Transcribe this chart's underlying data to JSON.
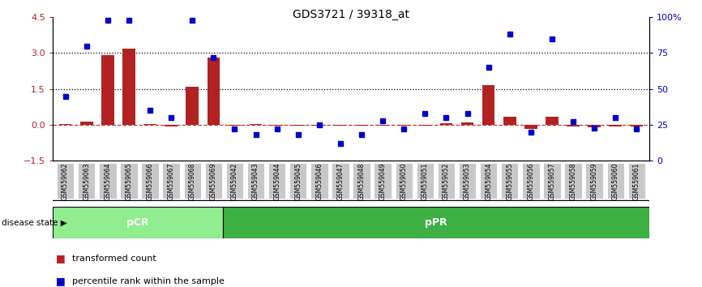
{
  "title": "GDS3721 / 39318_at",
  "samples": [
    "GSM559062",
    "GSM559063",
    "GSM559064",
    "GSM559065",
    "GSM559066",
    "GSM559067",
    "GSM559068",
    "GSM559069",
    "GSM559042",
    "GSM559043",
    "GSM559044",
    "GSM559045",
    "GSM559046",
    "GSM559047",
    "GSM559048",
    "GSM559049",
    "GSM559050",
    "GSM559051",
    "GSM559052",
    "GSM559053",
    "GSM559054",
    "GSM559055",
    "GSM559056",
    "GSM559057",
    "GSM559058",
    "GSM559059",
    "GSM559060",
    "GSM559061"
  ],
  "transformed_count": [
    0.05,
    0.12,
    2.9,
    3.2,
    0.05,
    -0.07,
    1.6,
    2.8,
    -0.05,
    0.04,
    -0.04,
    -0.04,
    -0.03,
    -0.04,
    -0.04,
    -0.04,
    -0.04,
    -0.04,
    0.06,
    0.09,
    1.65,
    0.35,
    -0.18,
    0.33,
    -0.06,
    -0.09,
    -0.06,
    -0.06
  ],
  "percentile_rank": [
    45,
    80,
    98,
    98,
    35,
    30,
    98,
    72,
    22,
    18,
    22,
    18,
    25,
    12,
    18,
    28,
    22,
    33,
    30,
    33,
    65,
    88,
    20,
    85,
    27,
    23,
    30,
    22
  ],
  "pcr_count": 8,
  "ppr_count": 20,
  "ylim_left": [
    -1.5,
    4.5
  ],
  "ylim_right": [
    0,
    100
  ],
  "yticks_left": [
    -1.5,
    0,
    1.5,
    3.0,
    4.5
  ],
  "yticks_right": [
    0,
    25,
    50,
    75,
    100
  ],
  "hline_values": [
    1.5,
    3.0
  ],
  "bar_color": "#b22222",
  "dot_color": "#0000cd",
  "zero_line_color": "#c0392b",
  "dotted_line_color": "#000000",
  "pcr_color": "#90ee90",
  "ppr_color": "#3cb043",
  "gray_box_color": "#c8c8c8",
  "legend_bar_label": "transformed count",
  "legend_dot_label": "percentile rank within the sample",
  "disease_state_label": "disease state",
  "pcr_label": "pCR",
  "ppr_label": "pPR"
}
